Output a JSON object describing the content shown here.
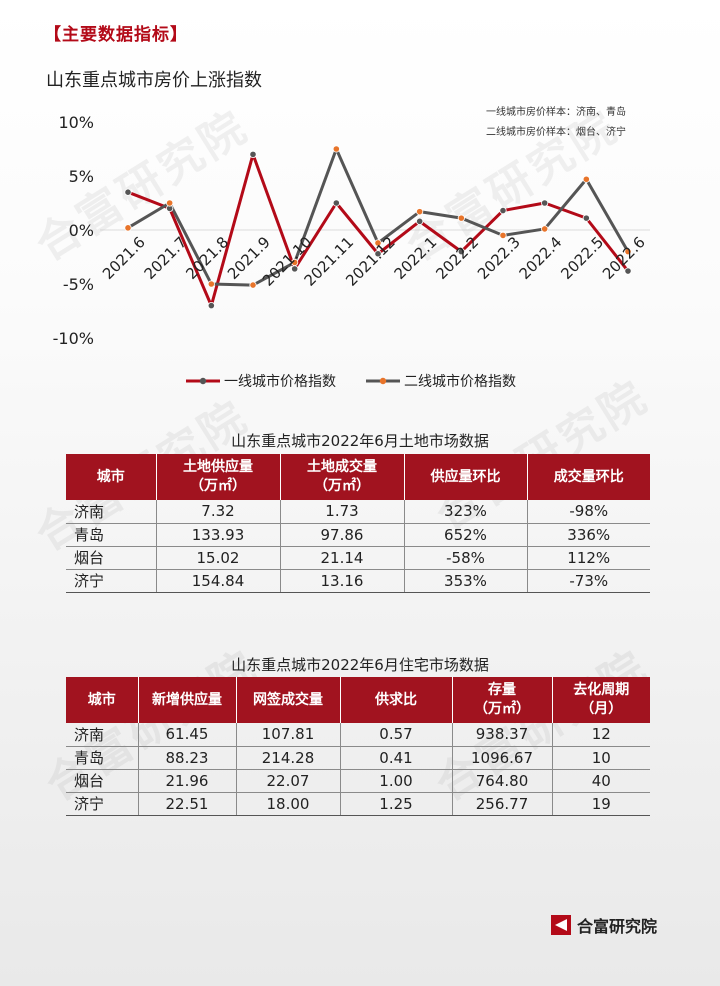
{
  "section_tag": "【主要数据指标】",
  "watermark_text": "合富研究院",
  "chart_data": {
    "type": "line",
    "title": "山东重点城市房价上涨指数",
    "categories": [
      "2021.6",
      "2021.7",
      "2021.8",
      "2021.9",
      "2021.10",
      "2021.11",
      "2021.12",
      "2022.1",
      "2022.2",
      "2022.3",
      "2022.4",
      "2022.5",
      "2022.6"
    ],
    "ylim": [
      -10,
      10
    ],
    "yticks": [
      10,
      5,
      0,
      -5,
      -10
    ],
    "ytick_labels": [
      "10%",
      "5%",
      "0%",
      "-5%",
      "-10%"
    ],
    "grid": false,
    "legend_position": "bottom",
    "series": [
      {
        "name": "一线城市价格指数",
        "line_color": "#b30a18",
        "marker_color": "#555555",
        "values": [
          3.5,
          2.0,
          -7.0,
          7.0,
          -3.6,
          2.5,
          -2.2,
          0.8,
          -2.0,
          1.8,
          2.5,
          1.1,
          -3.8
        ]
      },
      {
        "name": "二线城市价格指数",
        "line_color": "#555555",
        "marker_color": "#e8742a",
        "values": [
          0.2,
          2.5,
          -5.0,
          -5.1,
          -3.0,
          7.5,
          -1.2,
          1.7,
          1.1,
          -0.5,
          0.1,
          4.7,
          -2.0
        ]
      }
    ],
    "annotations": [
      "一线城市房价样本：济南、青岛",
      "二线城市房价样本：烟台、济宁"
    ]
  },
  "land_table": {
    "title": "山东重点城市2022年6月土地市场数据",
    "headers": [
      "城市",
      "土地供应量\n（万㎡）",
      "土地成交量\n（万㎡）",
      "供应量环比",
      "成交量环比"
    ],
    "rows": [
      [
        "济南",
        "7.32",
        "1.73",
        "323%",
        "-98%"
      ],
      [
        "青岛",
        "133.93",
        "97.86",
        "652%",
        "336%"
      ],
      [
        "烟台",
        "15.02",
        "21.14",
        "-58%",
        "112%"
      ],
      [
        "济宁",
        "154.84",
        "13.16",
        "353%",
        "-73%"
      ]
    ]
  },
  "housing_table": {
    "title": "山东重点城市2022年6月住宅市场数据",
    "headers": [
      "城市",
      "新增供应量",
      "网签成交量",
      "供求比",
      "存量\n（万㎡）",
      "去化周期\n（月）"
    ],
    "rows": [
      [
        "济南",
        "61.45",
        "107.81",
        "0.57",
        "938.37",
        "12"
      ],
      [
        "青岛",
        "88.23",
        "214.28",
        "0.41",
        "1096.67",
        "10"
      ],
      [
        "烟台",
        "21.96",
        "22.07",
        "1.00",
        "764.80",
        "40"
      ],
      [
        "济宁",
        "22.51",
        "18.00",
        "1.25",
        "256.77",
        "19"
      ]
    ]
  },
  "footer": {
    "logo_text": "合富研究院",
    "logo_icon": "hefu-logo-icon"
  }
}
